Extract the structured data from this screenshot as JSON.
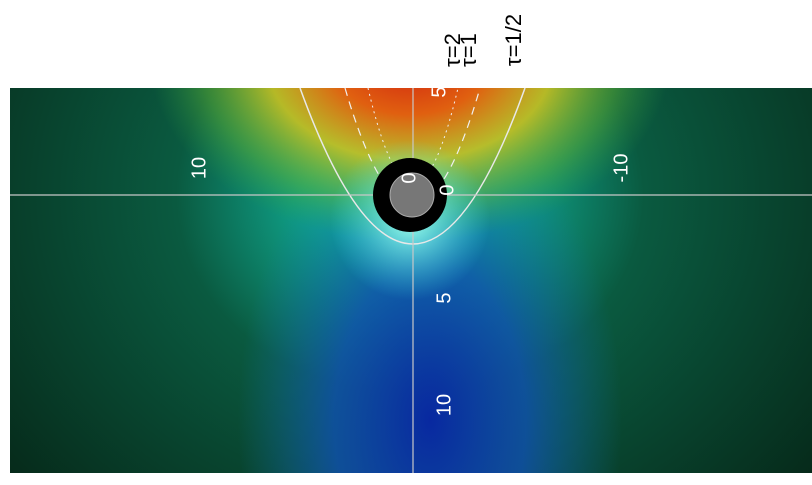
{
  "curve_labels": [
    "τ=2",
    "τ=1",
    "τ=1/2"
  ],
  "horizontal_axis_labels": [
    "10",
    "0",
    "-10"
  ],
  "vertical_axis_labels": [
    "5",
    "0",
    "5",
    "10"
  ]
}
